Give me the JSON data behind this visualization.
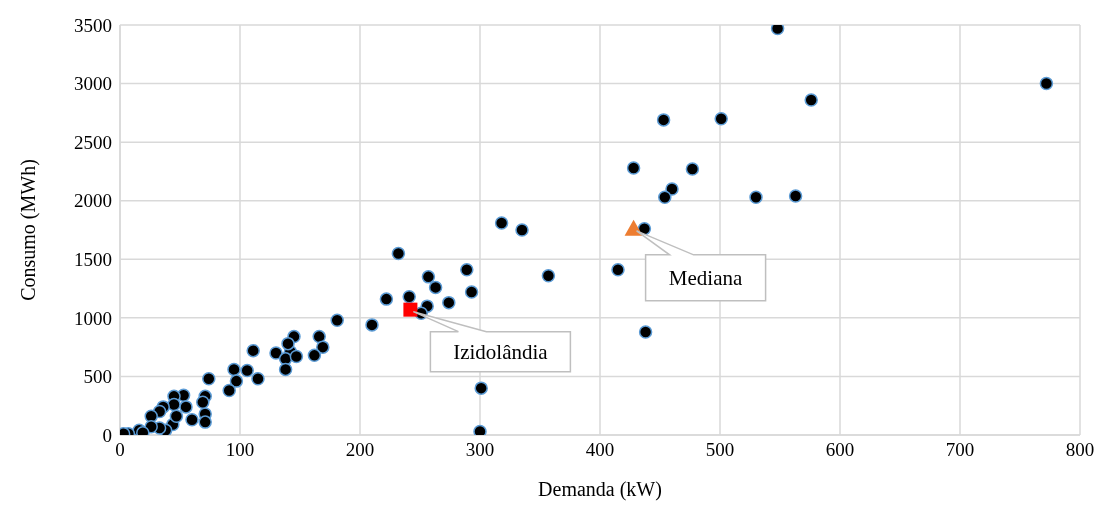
{
  "chart_data": {
    "type": "scatter",
    "xlabel": "Demanda (kW)",
    "ylabel": "Consumo (MWh)",
    "xlim": [
      0,
      800
    ],
    "xticks": [
      0,
      100,
      200,
      300,
      400,
      500,
      600,
      700,
      800
    ],
    "ylim": [
      0,
      3500
    ],
    "yticks": [
      0,
      500,
      1000,
      1500,
      2000,
      2500,
      3000,
      3500
    ],
    "grid": true,
    "legend": false,
    "series": [
      {
        "color": "#000000",
        "marker": "circle",
        "x": [
          548,
          772,
          576,
          453,
          501,
          428,
          477,
          460,
          454,
          530,
          563,
          437,
          318,
          335,
          415,
          357,
          438,
          289,
          293,
          274,
          257,
          263,
          241,
          256,
          251,
          232,
          222,
          210,
          181,
          301,
          300,
          111,
          145,
          166,
          169,
          162,
          130,
          142,
          138,
          147,
          138,
          140,
          95,
          106,
          97,
          91,
          115,
          74,
          71,
          71,
          71,
          69,
          60,
          53,
          55,
          45,
          45,
          36,
          33,
          26,
          44,
          38,
          33,
          26,
          16,
          7,
          3,
          19,
          47
        ],
        "values": [
          3470,
          3000,
          2860,
          2690,
          2700,
          2280,
          2270,
          2100,
          2030,
          2030,
          2040,
          1760,
          1810,
          1750,
          1410,
          1360,
          880,
          1410,
          1220,
          1130,
          1350,
          1260,
          1180,
          1100,
          1040,
          1550,
          1160,
          940,
          980,
          400,
          30,
          720,
          840,
          840,
          750,
          680,
          700,
          710,
          650,
          670,
          560,
          780,
          560,
          550,
          460,
          380,
          480,
          480,
          330,
          180,
          110,
          280,
          130,
          340,
          240,
          330,
          260,
          240,
          200,
          160,
          90,
          40,
          60,
          70,
          40,
          10,
          10,
          20,
          160
        ]
      },
      {
        "color": "#ff0000",
        "marker": "square",
        "x": [
          242
        ],
        "values": [
          1070
        ]
      },
      {
        "color": "#ed7d31",
        "marker": "triangle",
        "x": [
          428
        ],
        "values": [
          1760
        ]
      }
    ],
    "annotations": [
      {
        "text": "Izidolândia",
        "x": 242,
        "y": 1070
      },
      {
        "text": "Mediana",
        "x": 428,
        "y": 1760
      }
    ]
  }
}
